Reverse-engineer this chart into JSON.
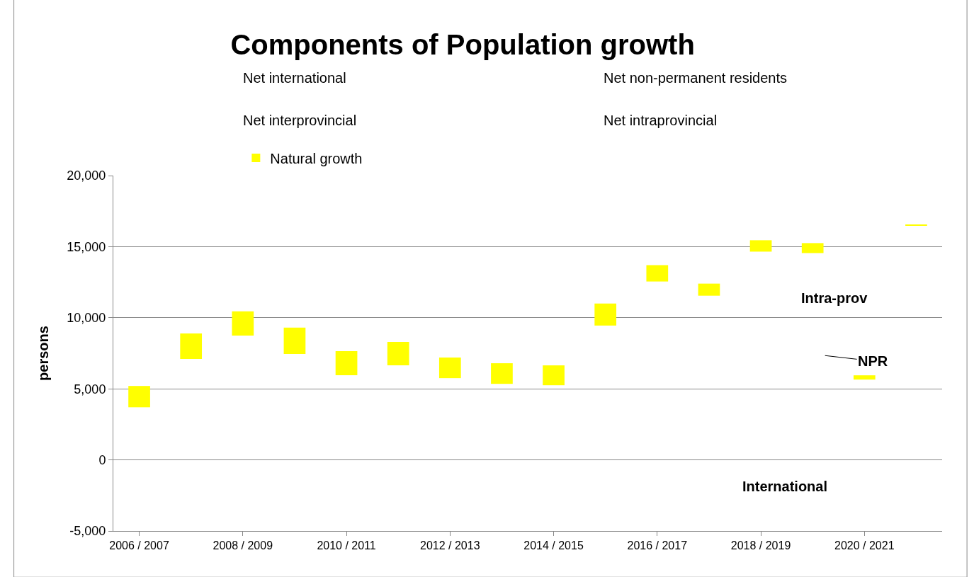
{
  "chart_data": {
    "type": "bar",
    "title": "Components of Population growth",
    "ylabel": "persons",
    "categories": [
      "2006 / 2007",
      null,
      "2008 / 2009",
      null,
      "2010 / 2011",
      null,
      "2012 / 2013",
      null,
      "2014 / 2015",
      null,
      "2016 / 2017",
      null,
      "2018 / 2019",
      null,
      "2020 / 2021",
      null
    ],
    "series": [
      {
        "name": "Natural growth",
        "color": "#ffff00",
        "values": [
          1500,
          1800,
          1700,
          1850,
          1700,
          1650,
          1450,
          1450,
          1400,
          1550,
          1150,
          850,
          800,
          700,
          300,
          50
        ],
        "base": [
          3700,
          7100,
          8750,
          7450,
          5950,
          6650,
          5750,
          5350,
          5250,
          9450,
          12550,
          11550,
          14650,
          14550,
          5650,
          16500
        ]
      }
    ],
    "ylim": [
      -5000,
      20000
    ],
    "yticks": [
      {
        "value": -5000,
        "label": "-5,000"
      },
      0,
      {
        "value": 5000,
        "label": "5,000"
      },
      {
        "value": 10000,
        "label": "10,000"
      },
      {
        "value": 15000,
        "label": "15,000"
      },
      {
        "value": 20000,
        "label": "20,000"
      }
    ],
    "grid": "y",
    "legend": "top",
    "annotations": [
      "Net international",
      "Net non-permanent residents",
      "Net interprovincial",
      "Net intraprovincial",
      "Intra-prov",
      "NPR",
      "International"
    ]
  }
}
